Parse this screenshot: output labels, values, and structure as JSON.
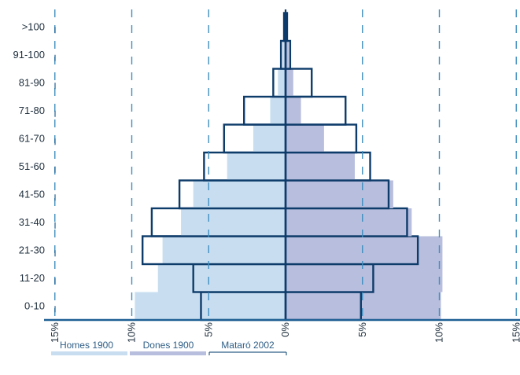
{
  "chart_data": {
    "type": "bar",
    "categories": [
      "0-10",
      "11-20",
      "21-30",
      "31-40",
      "41-50",
      "51-60",
      "61-70",
      "71-80",
      "81-90",
      "91-100",
      ">100"
    ],
    "x_axis": {
      "ticks": [
        -15,
        -10,
        -5,
        0,
        5,
        10,
        15
      ],
      "tick_labels": [
        "15%",
        "10%",
        "5%",
        "0%",
        "5%",
        "10%",
        "15%"
      ],
      "range": [
        -15,
        15
      ]
    },
    "series": [
      {
        "name": "Homes 1900",
        "side": "left",
        "values": [
          9.8,
          8.3,
          8.0,
          6.8,
          6.0,
          3.8,
          2.1,
          1.0,
          0.5,
          0.2,
          0.1
        ],
        "color": "#c8def0"
      },
      {
        "name": "Dones 1900",
        "side": "right",
        "values": [
          10.1,
          10.2,
          10.2,
          8.2,
          7.0,
          4.5,
          2.5,
          1.0,
          0.5,
          0.2,
          0.1
        ],
        "color": "#b8bedd"
      },
      {
        "name": "Mataró 2002",
        "side": "both",
        "left_values": [
          5.5,
          6.0,
          9.3,
          8.7,
          6.9,
          5.3,
          4.0,
          2.7,
          0.8,
          0.3,
          0.1
        ],
        "right_values": [
          4.9,
          5.7,
          8.6,
          7.9,
          6.7,
          5.5,
          4.6,
          3.9,
          1.7,
          0.3,
          0.1
        ],
        "color": "#0d3b6a"
      }
    ],
    "grid": true,
    "legend_position": "bottom-left"
  },
  "colors": {
    "axis": "#1f5f94",
    "grid": "#3f8fbf",
    "outline": "#0d3b6a",
    "text": "#1f2f3d"
  }
}
